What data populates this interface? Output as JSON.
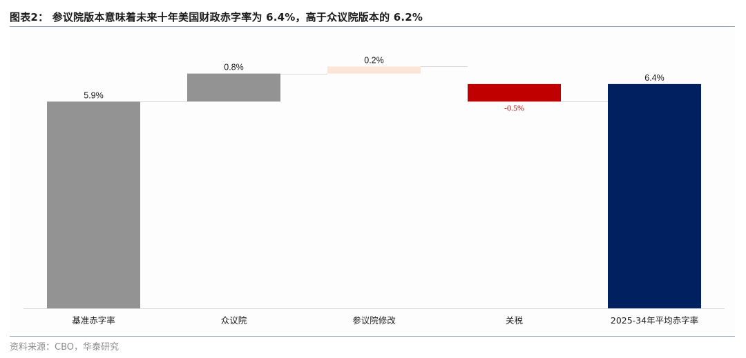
{
  "figure": {
    "title": "图表2：  参议院版本意味着未来十年美国财政赤字率为 6.4%，高于众议院版本的 6.2%",
    "source": "资料来源：CBO，华泰研究"
  },
  "chart_data": {
    "type": "bar",
    "subtype": "waterfall",
    "categories": [
      "基准赤字率",
      "众议院",
      "参议院修改",
      "关税",
      "2025-34年平均赤字率"
    ],
    "values": [
      5.9,
      0.8,
      0.2,
      -0.5,
      6.4
    ],
    "bases": [
      0,
      5.9,
      6.7,
      6.4,
      0
    ],
    "data_labels": [
      "5.9%",
      "0.8%",
      "0.2%",
      "-0.5%",
      "6.4%"
    ],
    "bar_colors": [
      "#939393",
      "#939393",
      "#fbe5d6",
      "#c00000",
      "#002060"
    ],
    "label_colors": [
      "#1a1a1a",
      "#1a1a1a",
      "#1a1a1a",
      "#c00000",
      "#1a1a1a"
    ],
    "connectors": true,
    "ylim": [
      0,
      8.0
    ],
    "y_axis_visible": false,
    "grid": false,
    "legend": "none",
    "unit": "%"
  }
}
